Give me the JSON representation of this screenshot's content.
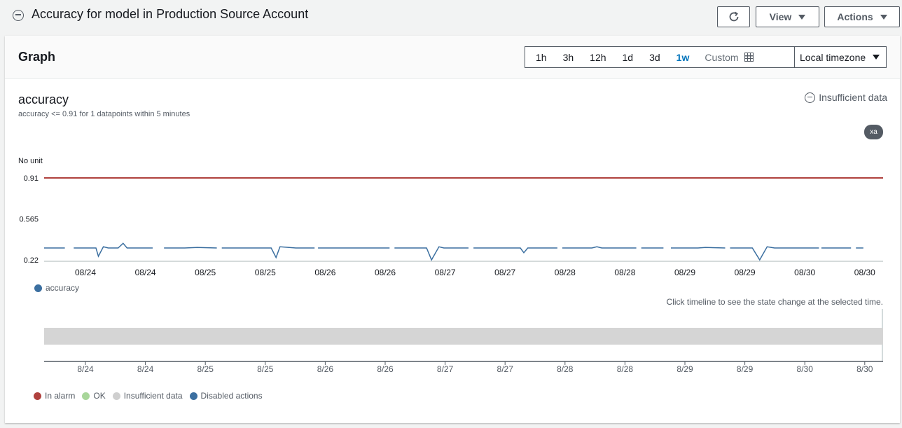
{
  "header": {
    "title": "Accuracy for model in Production Source Account",
    "view_label": "View",
    "actions_label": "Actions"
  },
  "panel": {
    "title": "Graph",
    "ranges": [
      "1h",
      "3h",
      "12h",
      "1d",
      "3d",
      "1w"
    ],
    "active_range": "1w",
    "custom_label": "Custom",
    "timezone": "Local timezone"
  },
  "metric": {
    "name": "accuracy",
    "description": "accuracy <= 0.91 for 1 datapoints within 5 minutes",
    "state": "Insufficient data",
    "badge": "xa",
    "unit": "No unit"
  },
  "chart_data": [
    {
      "type": "line",
      "ylabel": "No unit",
      "y_ticks": [
        "0.91",
        "0.565",
        "0.22"
      ],
      "ylim": [
        0.22,
        0.91
      ],
      "x_ticks": [
        "08/24",
        "08/24",
        "08/25",
        "08/25",
        "08/26",
        "08/26",
        "08/27",
        "08/27",
        "08/28",
        "08/28",
        "08/29",
        "08/29",
        "08/30",
        "08/30"
      ],
      "threshold": {
        "value": 0.91,
        "color": "#b0413e"
      },
      "series": [
        {
          "name": "accuracy",
          "color": "#3b6fa0",
          "segments": [
            {
              "x": [
                0.0,
                0.42
              ],
              "y": [
                0.32,
                0.32
              ]
            },
            {
              "x": [
                0.6,
                1.05,
                1.1,
                1.2,
                1.3,
                1.5,
                1.6,
                1.68,
                2.2
              ],
              "y": [
                0.32,
                0.32,
                0.25,
                0.33,
                0.32,
                0.32,
                0.36,
                0.32,
                0.32
              ]
            },
            {
              "x": [
                2.43,
                2.85,
                3.1,
                3.5
              ],
              "y": [
                0.32,
                0.32,
                0.325,
                0.32
              ]
            },
            {
              "x": [
                3.6,
                4.05,
                4.6,
                4.7,
                4.78,
                5.1,
                5.3,
                5.48
              ],
              "y": [
                0.32,
                0.32,
                0.32,
                0.24,
                0.33,
                0.32,
                0.32,
                0.32
              ]
            },
            {
              "x": [
                5.55,
                5.95,
                6.15,
                6.3,
                6.6,
                7.0
              ],
              "y": [
                0.32,
                0.32,
                0.32,
                0.32,
                0.32,
                0.32
              ]
            },
            {
              "x": [
                7.1,
                7.5,
                7.75,
                7.85,
                8.0,
                8.1,
                8.6
              ],
              "y": [
                0.32,
                0.32,
                0.32,
                0.22,
                0.33,
                0.32,
                0.32
              ]
            },
            {
              "x": [
                8.7,
                9.1,
                9.65,
                9.72,
                9.8,
                10.4
              ],
              "y": [
                0.32,
                0.32,
                0.32,
                0.28,
                0.32,
                0.32
              ]
            },
            {
              "x": [
                10.5,
                10.95,
                11.1,
                11.2,
                11.3,
                11.4,
                12.0
              ],
              "y": [
                0.32,
                0.32,
                0.32,
                0.33,
                0.32,
                0.32,
                0.32
              ]
            },
            {
              "x": [
                12.1,
                12.55
              ],
              "y": [
                0.32,
                0.32
              ]
            },
            {
              "x": [
                12.7,
                13.25,
                13.4,
                13.8
              ],
              "y": [
                0.32,
                0.32,
                0.325,
                0.32
              ]
            },
            {
              "x": [
                13.9,
                14.35,
                14.5,
                14.65,
                14.8,
                15.3,
                15.5,
                15.7
              ],
              "y": [
                0.32,
                0.32,
                0.22,
                0.33,
                0.32,
                0.32,
                0.32,
                0.32
              ]
            },
            {
              "x": [
                15.75,
                16.05,
                16.15,
                16.35
              ],
              "y": [
                0.32,
                0.32,
                0.32,
                0.32
              ]
            },
            {
              "x": [
                16.45,
                16.6
              ],
              "y": [
                0.32,
                0.32
              ]
            }
          ]
        }
      ]
    },
    {
      "type": "timeline",
      "x_ticks": [
        "8/24",
        "8/24",
        "8/25",
        "8/25",
        "8/26",
        "8/26",
        "8/27",
        "8/27",
        "8/28",
        "8/28",
        "8/29",
        "8/29",
        "8/30",
        "8/30"
      ],
      "state": "Insufficient data",
      "state_color": "#d5d5d5",
      "hint": "Click timeline to see the state change at the selected time."
    }
  ],
  "legend": {
    "series": {
      "label": "accuracy",
      "color": "#3b6fa0"
    },
    "states": [
      {
        "label": "In alarm",
        "color": "#b0413e"
      },
      {
        "label": "OK",
        "color": "#a8d69a"
      },
      {
        "label": "Insufficient data",
        "color": "#cfcfcf"
      },
      {
        "label": "Disabled actions",
        "color": "#3b6fa0"
      }
    ]
  }
}
